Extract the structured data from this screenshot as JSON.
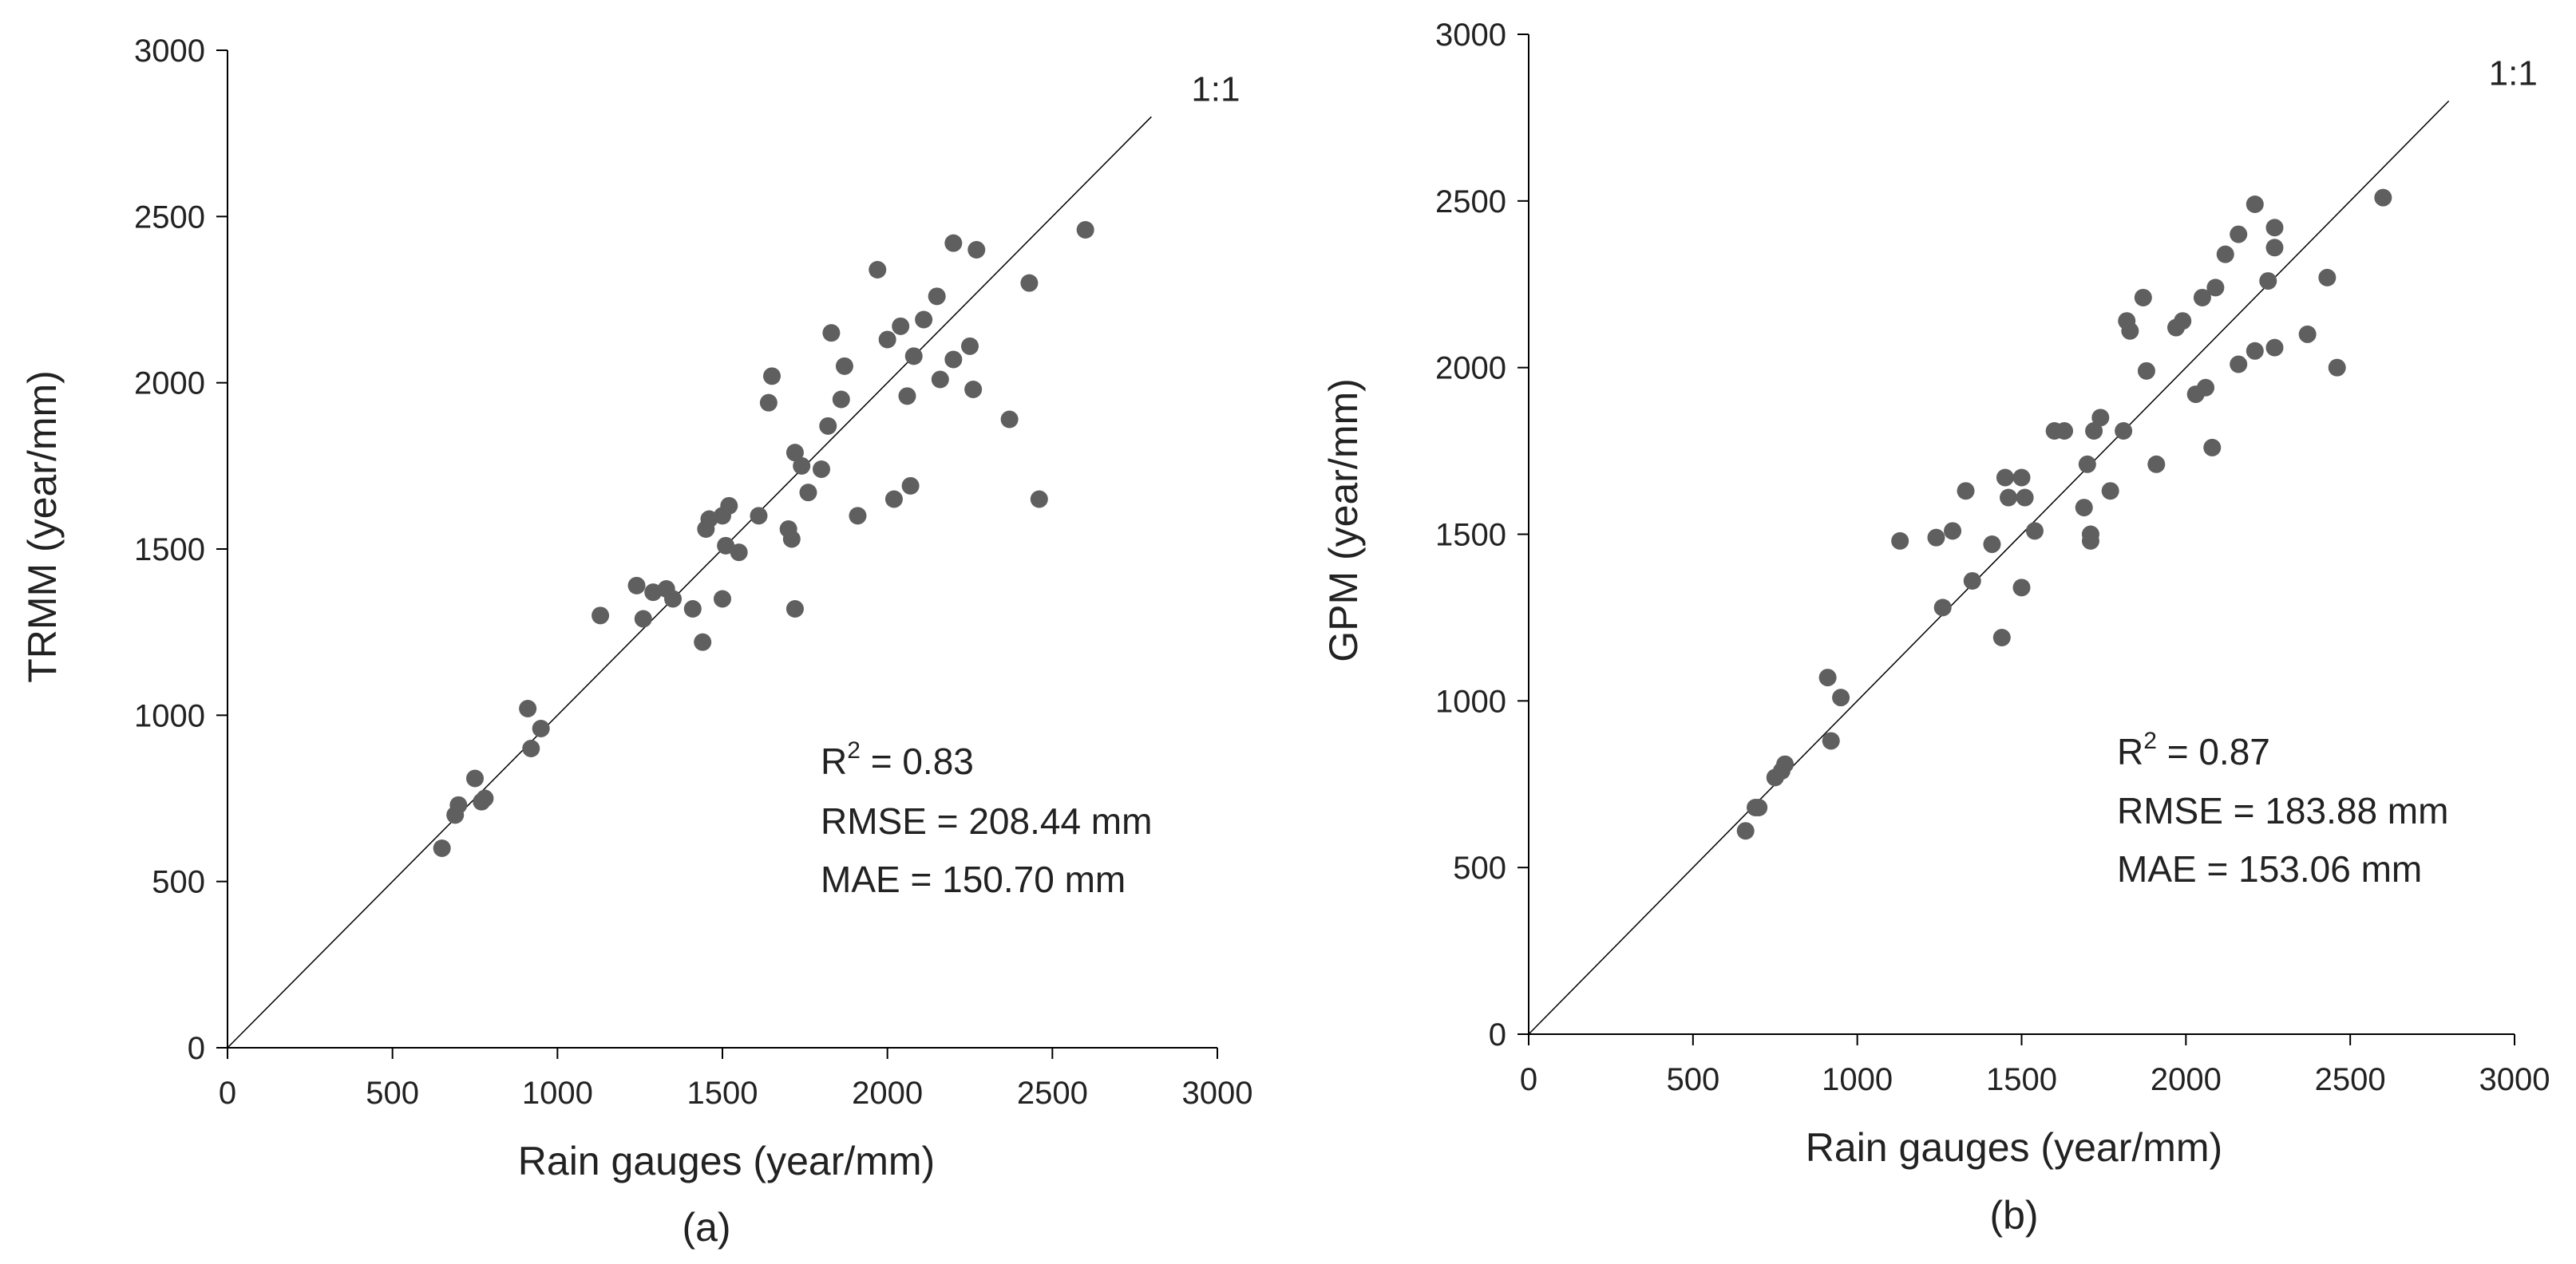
{
  "colors": {
    "point": "#5f5f5f",
    "axis": "#000000",
    "line": "#000000",
    "text": "#222222"
  },
  "chart_data": [
    {
      "type": "scatter",
      "panel_label": "(a)",
      "xlabel": "Rain gauges (year/mm)",
      "ylabel": "TRMM (year/mm)",
      "xlim": [
        0,
        3000
      ],
      "ylim": [
        0,
        3000
      ],
      "xticks": [
        0,
        500,
        1000,
        1500,
        2000,
        2500,
        3000
      ],
      "yticks": [
        0,
        500,
        1000,
        1500,
        2000,
        2500,
        3000
      ],
      "reference_line": {
        "label": "1:1",
        "from": [
          0,
          0
        ],
        "to": [
          2800,
          2800
        ]
      },
      "stats": {
        "r2_prefix": "R",
        "r2_sup": "2",
        "r2_value": " = 0.83",
        "rmse": "RMSE = 208.44 mm",
        "mae": "MAE = 150.70 mm"
      },
      "points": [
        [
          650,
          600
        ],
        [
          690,
          700
        ],
        [
          700,
          730
        ],
        [
          750,
          810
        ],
        [
          770,
          740
        ],
        [
          780,
          750
        ],
        [
          910,
          1020
        ],
        [
          920,
          900
        ],
        [
          950,
          960
        ],
        [
          1130,
          1300
        ],
        [
          1240,
          1390
        ],
        [
          1260,
          1290
        ],
        [
          1290,
          1370
        ],
        [
          1330,
          1380
        ],
        [
          1350,
          1350
        ],
        [
          1410,
          1320
        ],
        [
          1440,
          1220
        ],
        [
          1450,
          1560
        ],
        [
          1460,
          1590
        ],
        [
          1500,
          1600
        ],
        [
          1500,
          1350
        ],
        [
          1510,
          1510
        ],
        [
          1520,
          1630
        ],
        [
          1550,
          1490
        ],
        [
          1610,
          1600
        ],
        [
          1640,
          1940
        ],
        [
          1650,
          2020
        ],
        [
          1700,
          1560
        ],
        [
          1710,
          1530
        ],
        [
          1720,
          1790
        ],
        [
          1720,
          1320
        ],
        [
          1740,
          1750
        ],
        [
          1760,
          1670
        ],
        [
          1800,
          1740
        ],
        [
          1820,
          1870
        ],
        [
          1830,
          2150
        ],
        [
          1860,
          1950
        ],
        [
          1870,
          2050
        ],
        [
          1910,
          1600
        ],
        [
          1970,
          2340
        ],
        [
          2000,
          2130
        ],
        [
          2020,
          1650
        ],
        [
          2040,
          2170
        ],
        [
          2060,
          1960
        ],
        [
          2070,
          1690
        ],
        [
          2080,
          2080
        ],
        [
          2110,
          2190
        ],
        [
          2150,
          2260
        ],
        [
          2160,
          2010
        ],
        [
          2200,
          2070
        ],
        [
          2200,
          2420
        ],
        [
          2250,
          2110
        ],
        [
          2260,
          1980
        ],
        [
          2270,
          2400
        ],
        [
          2370,
          1890
        ],
        [
          2430,
          2300
        ],
        [
          2460,
          1650
        ],
        [
          2600,
          2460
        ]
      ]
    },
    {
      "type": "scatter",
      "panel_label": "(b)",
      "xlabel": "Rain gauges (year/mm)",
      "ylabel": "GPM (year/mm)",
      "xlim": [
        0,
        3000
      ],
      "ylim": [
        0,
        3000
      ],
      "xticks": [
        0,
        500,
        1000,
        1500,
        2000,
        2500,
        3000
      ],
      "yticks": [
        0,
        500,
        1000,
        1500,
        2000,
        2500,
        3000
      ],
      "reference_line": {
        "label": "1:1",
        "from": [
          0,
          0
        ],
        "to": [
          2800,
          2800
        ]
      },
      "stats": {
        "r2_prefix": "R",
        "r2_sup": "2",
        "r2_value": " = 0.87",
        "rmse": "RMSE = 183.88 mm",
        "mae": "MAE = 153.06 mm"
      },
      "points": [
        [
          660,
          610
        ],
        [
          690,
          680
        ],
        [
          700,
          680
        ],
        [
          750,
          770
        ],
        [
          770,
          790
        ],
        [
          780,
          810
        ],
        [
          910,
          1070
        ],
        [
          920,
          880
        ],
        [
          950,
          1010
        ],
        [
          1130,
          1480
        ],
        [
          1240,
          1490
        ],
        [
          1260,
          1280
        ],
        [
          1290,
          1510
        ],
        [
          1330,
          1630
        ],
        [
          1350,
          1360
        ],
        [
          1410,
          1470
        ],
        [
          1440,
          1190
        ],
        [
          1450,
          1670
        ],
        [
          1460,
          1610
        ],
        [
          1500,
          1670
        ],
        [
          1500,
          1340
        ],
        [
          1510,
          1610
        ],
        [
          1540,
          1510
        ],
        [
          1600,
          1810
        ],
        [
          1630,
          1810
        ],
        [
          1690,
          1580
        ],
        [
          1700,
          1710
        ],
        [
          1710,
          1500
        ],
        [
          1710,
          1480
        ],
        [
          1720,
          1810
        ],
        [
          1740,
          1850
        ],
        [
          1770,
          1630
        ],
        [
          1810,
          1810
        ],
        [
          1820,
          2140
        ],
        [
          1830,
          2110
        ],
        [
          1870,
          2210
        ],
        [
          1880,
          1990
        ],
        [
          1910,
          1710
        ],
        [
          1970,
          2120
        ],
        [
          1990,
          2140
        ],
        [
          2030,
          1920
        ],
        [
          2050,
          2210
        ],
        [
          2060,
          1940
        ],
        [
          2080,
          1760
        ],
        [
          2090,
          2240
        ],
        [
          2120,
          2340
        ],
        [
          2160,
          2400
        ],
        [
          2160,
          2010
        ],
        [
          2210,
          2490
        ],
        [
          2210,
          2050
        ],
        [
          2250,
          2260
        ],
        [
          2270,
          2420
        ],
        [
          2270,
          2360
        ],
        [
          2270,
          2060
        ],
        [
          2370,
          2100
        ],
        [
          2430,
          2270
        ],
        [
          2460,
          2000
        ],
        [
          2600,
          2510
        ]
      ]
    }
  ]
}
